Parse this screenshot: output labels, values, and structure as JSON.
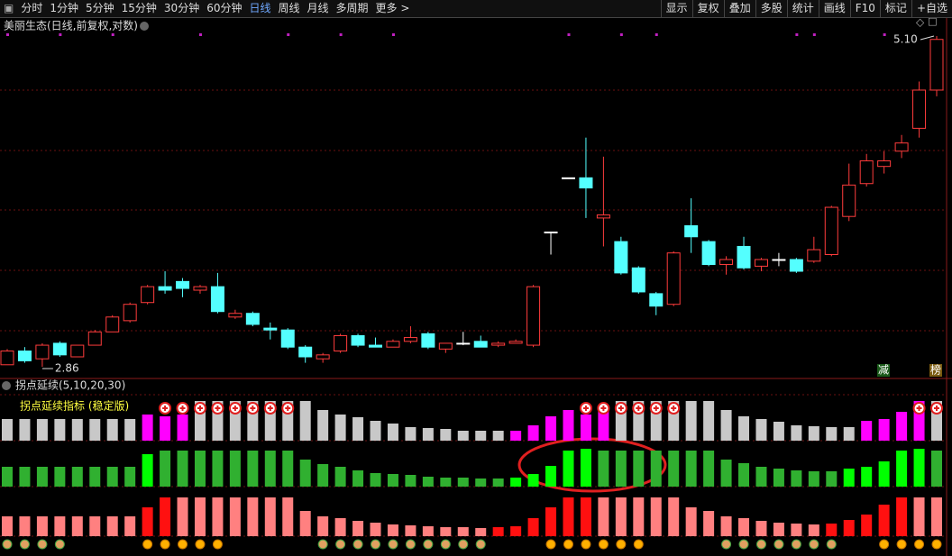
{
  "toolbar": {
    "left": [
      "分时",
      "1分钟",
      "5分钟",
      "15分钟",
      "30分钟",
      "60分钟",
      "日线",
      "周线",
      "月线",
      "多周期",
      "更多 >"
    ],
    "right": [
      "显示",
      "复权",
      "叠加",
      "多股",
      "统计",
      "画线",
      "F10",
      "标记",
      "+自选"
    ]
  },
  "chart_data": [
    {
      "type": "candlestick",
      "title": "美丽生态(日线,前复权,对数)",
      "log": true,
      "ylim": [
        2.86,
        5.1
      ],
      "max_label": "5.10",
      "min_label": "2.86",
      "up_color": "#ff3c3c",
      "down_color": "#54ffff",
      "flat_color": "#ffffff",
      "open": [
        2.87,
        2.94,
        2.9,
        2.98,
        2.91,
        2.97,
        3.04,
        3.1,
        3.2,
        3.29,
        3.32,
        3.27,
        3.29,
        3.12,
        3.14,
        3.06,
        3.05,
        2.96,
        2.9,
        2.94,
        3.02,
        2.97,
        2.96,
        2.99,
        3.03,
        2.95,
        2.98,
        2.99,
        2.97,
        2.98,
        2.97,
        3.62,
        3.98,
        3.98,
        3.71,
        3.56,
        3.4,
        3.25,
        3.19,
        3.66,
        3.56,
        3.42,
        3.53,
        3.41,
        3.45,
        3.45,
        3.44,
        3.48,
        3.72,
        3.94,
        4.06,
        4.17,
        4.34,
        4.64
      ],
      "high": [
        2.95,
        2.96,
        2.98,
        2.99,
        2.97,
        3.05,
        3.13,
        3.2,
        3.3,
        3.38,
        3.34,
        3.3,
        3.37,
        3.16,
        3.15,
        3.09,
        3.06,
        2.97,
        2.93,
        3.03,
        3.03,
        3.01,
        3.0,
        3.07,
        3.04,
        2.98,
        3.04,
        3.02,
        2.99,
        3.0,
        3.3,
        3.62,
        3.98,
        4.27,
        4.13,
        3.59,
        3.41,
        3.26,
        3.5,
        3.84,
        3.57,
        3.47,
        3.59,
        3.46,
        3.49,
        3.46,
        3.59,
        3.79,
        4.08,
        4.15,
        4.17,
        4.29,
        4.71,
        5.1
      ],
      "low": [
        2.87,
        2.88,
        2.86,
        2.91,
        2.91,
        2.97,
        3.04,
        3.09,
        3.19,
        3.25,
        3.23,
        3.25,
        3.14,
        3.11,
        3.07,
        3.0,
        2.95,
        2.88,
        2.88,
        2.93,
        2.96,
        2.96,
        2.96,
        2.98,
        2.95,
        2.93,
        2.97,
        2.96,
        2.96,
        2.98,
        2.96,
        3.48,
        3.98,
        3.71,
        3.53,
        3.36,
        3.25,
        3.13,
        3.18,
        3.49,
        3.41,
        3.36,
        3.39,
        3.38,
        3.41,
        3.37,
        3.43,
        3.47,
        3.69,
        3.92,
        4.01,
        4.12,
        4.27,
        4.59
      ],
      "close": [
        2.94,
        2.89,
        2.97,
        2.92,
        2.97,
        3.04,
        3.12,
        3.19,
        3.29,
        3.27,
        3.28,
        3.29,
        3.15,
        3.14,
        3.08,
        3.05,
        2.96,
        2.91,
        2.92,
        3.02,
        2.97,
        2.96,
        2.99,
        3.01,
        2.96,
        2.98,
        2.98,
        2.96,
        2.98,
        2.99,
        3.29,
        3.62,
        3.98,
        3.91,
        3.73,
        3.37,
        3.26,
        3.18,
        3.49,
        3.59,
        3.42,
        3.45,
        3.4,
        3.45,
        3.45,
        3.38,
        3.51,
        3.78,
        3.93,
        4.1,
        4.1,
        4.23,
        4.64,
        5.07
      ]
    },
    {
      "type": "bar",
      "title": "拐点延续(5,10,20,30)",
      "subtitle": "拐点延续指标 (稳定版)",
      "signals": [
        "减",
        "榜"
      ],
      "ylim": [
        0,
        50
      ],
      "series": [
        {
          "values": [
            24,
            24,
            24,
            24,
            24,
            24,
            24,
            24,
            29,
            27,
            29,
            44,
            44,
            44,
            44,
            44,
            44,
            44,
            34,
            29,
            26,
            22,
            19,
            15,
            14,
            13,
            11,
            11,
            11,
            11,
            17,
            27,
            34,
            29,
            34,
            44,
            44,
            44,
            44,
            44,
            44,
            34,
            27,
            24,
            21,
            17,
            16,
            15,
            15,
            22,
            24,
            32,
            44,
            44
          ],
          "colors": [
            "#c8c8c8",
            "#c8c8c8",
            "#c8c8c8",
            "#c8c8c8",
            "#c8c8c8",
            "#c8c8c8",
            "#c8c8c8",
            "#c8c8c8",
            "#ff00ff",
            "#ff00ff",
            "#ff00ff",
            "#c8c8c8",
            "#c8c8c8",
            "#c8c8c8",
            "#c8c8c8",
            "#c8c8c8",
            "#c8c8c8",
            "#c8c8c8",
            "#c8c8c8",
            "#c8c8c8",
            "#c8c8c8",
            "#c8c8c8",
            "#c8c8c8",
            "#c8c8c8",
            "#c8c8c8",
            "#c8c8c8",
            "#c8c8c8",
            "#c8c8c8",
            "#c8c8c8",
            "#ff00ff",
            "#ff00ff",
            "#ff00ff",
            "#ff00ff",
            "#ff00ff",
            "#ff00ff",
            "#c8c8c8",
            "#c8c8c8",
            "#c8c8c8",
            "#c8c8c8",
            "#c8c8c8",
            "#c8c8c8",
            "#c8c8c8",
            "#c8c8c8",
            "#c8c8c8",
            "#c8c8c8",
            "#c8c8c8",
            "#c8c8c8",
            "#c8c8c8",
            "#c8c8c8",
            "#ff00ff",
            "#ff00ff",
            "#ff00ff",
            "#ff00ff",
            "#c8c8c8"
          ]
        },
        {
          "values": [
            22,
            22,
            22,
            22,
            22,
            22,
            22,
            22,
            36,
            40,
            40,
            40,
            40,
            40,
            40,
            40,
            40,
            30,
            25,
            22,
            18,
            15,
            14,
            13,
            11,
            10,
            10,
            9,
            9,
            10,
            14,
            23,
            40,
            42,
            40,
            40,
            40,
            40,
            40,
            40,
            40,
            30,
            26,
            22,
            20,
            18,
            17,
            17,
            20,
            22,
            28,
            40,
            42,
            40
          ],
          "colors": [
            "#30b030",
            "#30b030",
            "#30b030",
            "#30b030",
            "#30b030",
            "#30b030",
            "#30b030",
            "#30b030",
            "#00ff00",
            "#30b030",
            "#30b030",
            "#30b030",
            "#30b030",
            "#30b030",
            "#30b030",
            "#30b030",
            "#30b030",
            "#30b030",
            "#30b030",
            "#30b030",
            "#30b030",
            "#30b030",
            "#30b030",
            "#30b030",
            "#30b030",
            "#30b030",
            "#30b030",
            "#30b030",
            "#30b030",
            "#00ff00",
            "#00ff00",
            "#00ff00",
            "#00ff00",
            "#00ff00",
            "#30b030",
            "#30b030",
            "#30b030",
            "#30b030",
            "#30b030",
            "#30b030",
            "#30b030",
            "#30b030",
            "#30b030",
            "#30b030",
            "#30b030",
            "#30b030",
            "#30b030",
            "#30b030",
            "#00ff00",
            "#00ff00",
            "#00ff00",
            "#00ff00",
            "#00ff00",
            "#30b030"
          ]
        },
        {
          "values": [
            22,
            22,
            22,
            22,
            22,
            22,
            22,
            22,
            32,
            43,
            43,
            43,
            43,
            43,
            43,
            43,
            43,
            28,
            22,
            20,
            17,
            15,
            13,
            12,
            11,
            10,
            10,
            9,
            10,
            11,
            20,
            32,
            43,
            43,
            43,
            43,
            43,
            43,
            43,
            32,
            28,
            22,
            20,
            17,
            15,
            14,
            13,
            14,
            18,
            24,
            35,
            43,
            43,
            43
          ],
          "colors": [
            "#ff8080",
            "#ff8080",
            "#ff8080",
            "#ff8080",
            "#ff8080",
            "#ff8080",
            "#ff8080",
            "#ff8080",
            "#ff1010",
            "#ff1010",
            "#ff8080",
            "#ff8080",
            "#ff8080",
            "#ff8080",
            "#ff8080",
            "#ff8080",
            "#ff8080",
            "#ff8080",
            "#ff8080",
            "#ff8080",
            "#ff8080",
            "#ff8080",
            "#ff8080",
            "#ff8080",
            "#ff8080",
            "#ff8080",
            "#ff8080",
            "#ff8080",
            "#ff1010",
            "#ff1010",
            "#ff1010",
            "#ff1010",
            "#ff1010",
            "#ff1010",
            "#ff8080",
            "#ff8080",
            "#ff8080",
            "#ff8080",
            "#ff8080",
            "#ff8080",
            "#ff8080",
            "#ff8080",
            "#ff8080",
            "#ff8080",
            "#ff8080",
            "#ff8080",
            "#ff8080",
            "#ff1010",
            "#ff1010",
            "#ff1010",
            "#ff1010",
            "#ff1010",
            "#ff8080",
            "#ff8080"
          ]
        }
      ]
    }
  ]
}
